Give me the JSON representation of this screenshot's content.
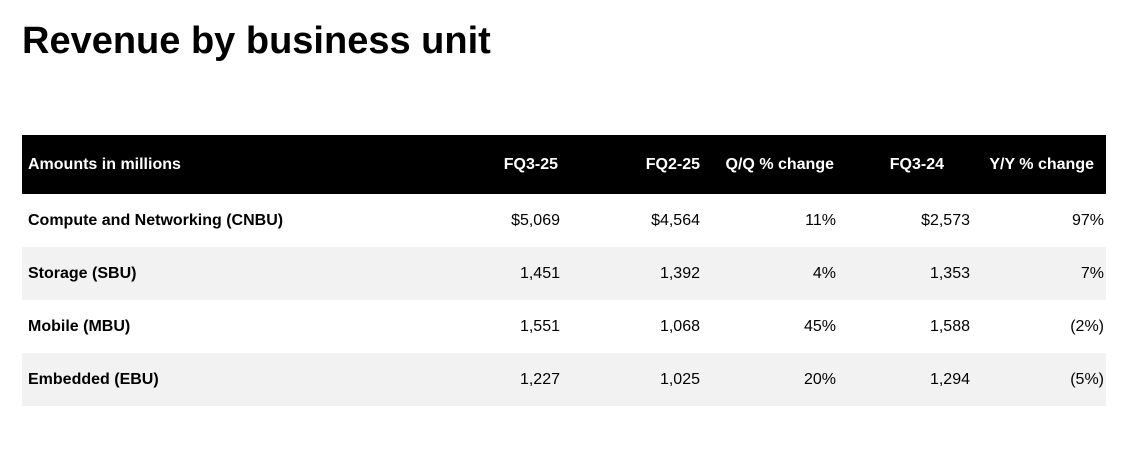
{
  "title": "Revenue by business unit",
  "table": {
    "headers": [
      "Amounts in millions",
      "FQ3-25",
      "FQ2-25",
      "Q/Q % change",
      "FQ3-24",
      "Y/Y % change"
    ],
    "rows": [
      [
        "Compute and Networking (CNBU)",
        "$5,069",
        "$4,564",
        "11%",
        "$2,573",
        "97%"
      ],
      [
        "Storage (SBU)",
        "1,451",
        "1,392",
        "4%",
        "1,353",
        "7%"
      ],
      [
        "Mobile (MBU)",
        "1,551",
        "1,068",
        "45%",
        "1,588",
        "(2%)"
      ],
      [
        "Embedded (EBU)",
        "1,227",
        "1,025",
        "20%",
        "1,294",
        "(5%)"
      ]
    ]
  },
  "colors": {
    "header_background": "#000000",
    "header_text": "#ffffff",
    "row_shade": "#f2f2f2"
  }
}
